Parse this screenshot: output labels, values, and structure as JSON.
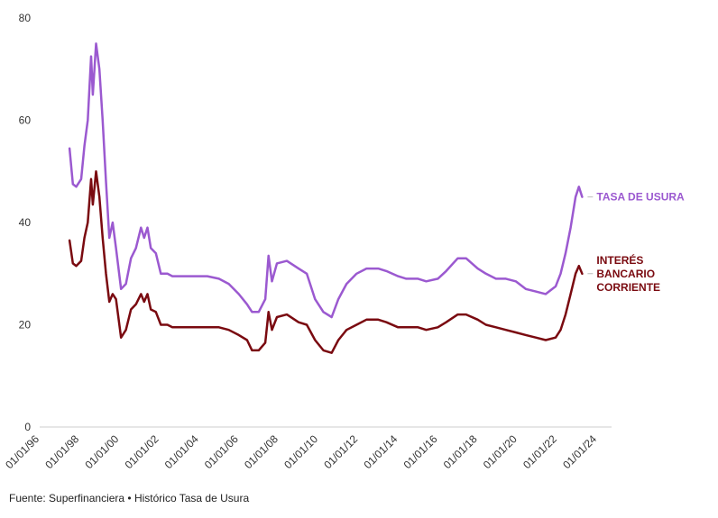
{
  "chart_data": {
    "type": "line",
    "ylim": [
      0,
      80
    ],
    "y_ticks": [
      0,
      20,
      40,
      60,
      80
    ],
    "x_range": [
      "1996-01-01",
      "2024-01-01"
    ],
    "x_ticks": [
      "01/01/96",
      "01/01/98",
      "01/01/00",
      "01/01/02",
      "01/01/04",
      "01/01/06",
      "01/01/08",
      "01/01/10",
      "01/01/12",
      "01/01/14",
      "01/01/16",
      "01/01/18",
      "01/01/20",
      "01/01/22",
      "01/01/24"
    ],
    "grid": false,
    "series": [
      {
        "name": "TASA DE USURA",
        "color": "#9b59d0",
        "points": [
          [
            "1997-07-01",
            54.5
          ],
          [
            "1997-09-01",
            47.5
          ],
          [
            "1997-11-01",
            47
          ],
          [
            "1998-02-01",
            48.5
          ],
          [
            "1998-04-01",
            55
          ],
          [
            "1998-06-01",
            60
          ],
          [
            "1998-08-01",
            72.5
          ],
          [
            "1998-09-01",
            65
          ],
          [
            "1998-11-01",
            75
          ],
          [
            "1999-01-01",
            70
          ],
          [
            "1999-03-01",
            60
          ],
          [
            "1999-05-01",
            48
          ],
          [
            "1999-07-01",
            37
          ],
          [
            "1999-09-01",
            40
          ],
          [
            "1999-11-01",
            35
          ],
          [
            "2000-02-01",
            27
          ],
          [
            "2000-05-01",
            28
          ],
          [
            "2000-08-01",
            33
          ],
          [
            "2000-11-01",
            35
          ],
          [
            "2001-02-01",
            39
          ],
          [
            "2001-04-01",
            37
          ],
          [
            "2001-06-01",
            39
          ],
          [
            "2001-08-01",
            35
          ],
          [
            "2001-11-01",
            34
          ],
          [
            "2002-02-01",
            30
          ],
          [
            "2002-06-01",
            30
          ],
          [
            "2002-09-01",
            29.5
          ],
          [
            "2003-01-01",
            29.5
          ],
          [
            "2003-06-01",
            29.5
          ],
          [
            "2003-12-01",
            29.5
          ],
          [
            "2004-06-01",
            29.5
          ],
          [
            "2005-01-01",
            29
          ],
          [
            "2005-07-01",
            28
          ],
          [
            "2006-01-01",
            26
          ],
          [
            "2006-06-01",
            24
          ],
          [
            "2006-09-01",
            22.5
          ],
          [
            "2007-01-01",
            22.5
          ],
          [
            "2007-05-01",
            25
          ],
          [
            "2007-07-01",
            33.5
          ],
          [
            "2007-09-01",
            28.5
          ],
          [
            "2007-12-01",
            32
          ],
          [
            "2008-06-01",
            32.5
          ],
          [
            "2009-01-01",
            31
          ],
          [
            "2009-06-01",
            30
          ],
          [
            "2009-11-01",
            25
          ],
          [
            "2010-04-01",
            22.5
          ],
          [
            "2010-09-01",
            21.5
          ],
          [
            "2011-01-01",
            25
          ],
          [
            "2011-06-01",
            28
          ],
          [
            "2011-12-01",
            30
          ],
          [
            "2012-06-01",
            31
          ],
          [
            "2013-01-01",
            31
          ],
          [
            "2013-06-01",
            30.5
          ],
          [
            "2014-01-01",
            29.5
          ],
          [
            "2014-06-01",
            29
          ],
          [
            "2015-01-01",
            29
          ],
          [
            "2015-06-01",
            28.5
          ],
          [
            "2016-01-01",
            29
          ],
          [
            "2016-06-01",
            30.5
          ],
          [
            "2017-01-01",
            33
          ],
          [
            "2017-06-01",
            33
          ],
          [
            "2018-01-01",
            31
          ],
          [
            "2018-06-01",
            30
          ],
          [
            "2018-12-01",
            29
          ],
          [
            "2019-06-01",
            29
          ],
          [
            "2019-12-01",
            28.5
          ],
          [
            "2020-06-01",
            27
          ],
          [
            "2020-12-01",
            26.5
          ],
          [
            "2021-06-01",
            26
          ],
          [
            "2021-12-01",
            27.5
          ],
          [
            "2022-03-01",
            30
          ],
          [
            "2022-06-01",
            34
          ],
          [
            "2022-09-01",
            39
          ],
          [
            "2022-12-01",
            45
          ],
          [
            "2023-02-01",
            47
          ],
          [
            "2023-04-01",
            45
          ]
        ]
      },
      {
        "name": "INTERÉS BANCARIO CORRIENTE",
        "color": "#7a0a10",
        "points": [
          [
            "1997-07-01",
            36.5
          ],
          [
            "1997-09-01",
            32
          ],
          [
            "1997-11-01",
            31.5
          ],
          [
            "1998-02-01",
            32.5
          ],
          [
            "1998-04-01",
            37
          ],
          [
            "1998-06-01",
            40
          ],
          [
            "1998-08-01",
            48.5
          ],
          [
            "1998-09-01",
            43.5
          ],
          [
            "1998-11-01",
            50
          ],
          [
            "1999-01-01",
            45
          ],
          [
            "1999-03-01",
            37
          ],
          [
            "1999-05-01",
            30
          ],
          [
            "1999-07-01",
            24.5
          ],
          [
            "1999-09-01",
            26
          ],
          [
            "1999-11-01",
            25
          ],
          [
            "2000-02-01",
            17.5
          ],
          [
            "2000-05-01",
            19
          ],
          [
            "2000-08-01",
            23
          ],
          [
            "2000-11-01",
            24
          ],
          [
            "2001-02-01",
            26
          ],
          [
            "2001-04-01",
            24.5
          ],
          [
            "2001-06-01",
            26
          ],
          [
            "2001-08-01",
            23
          ],
          [
            "2001-11-01",
            22.5
          ],
          [
            "2002-02-01",
            20
          ],
          [
            "2002-06-01",
            20
          ],
          [
            "2002-09-01",
            19.5
          ],
          [
            "2003-01-01",
            19.5
          ],
          [
            "2003-06-01",
            19.5
          ],
          [
            "2003-12-01",
            19.5
          ],
          [
            "2004-06-01",
            19.5
          ],
          [
            "2005-01-01",
            19.5
          ],
          [
            "2005-07-01",
            19
          ],
          [
            "2006-01-01",
            18
          ],
          [
            "2006-06-01",
            17
          ],
          [
            "2006-09-01",
            15
          ],
          [
            "2007-01-01",
            15
          ],
          [
            "2007-05-01",
            16.5
          ],
          [
            "2007-07-01",
            22.5
          ],
          [
            "2007-09-01",
            19
          ],
          [
            "2007-12-01",
            21.5
          ],
          [
            "2008-06-01",
            22
          ],
          [
            "2009-01-01",
            20.5
          ],
          [
            "2009-06-01",
            20
          ],
          [
            "2009-11-01",
            17
          ],
          [
            "2010-04-01",
            15
          ],
          [
            "2010-09-01",
            14.5
          ],
          [
            "2011-01-01",
            17
          ],
          [
            "2011-06-01",
            19
          ],
          [
            "2011-12-01",
            20
          ],
          [
            "2012-06-01",
            21
          ],
          [
            "2013-01-01",
            21
          ],
          [
            "2013-06-01",
            20.5
          ],
          [
            "2014-01-01",
            19.5
          ],
          [
            "2014-06-01",
            19.5
          ],
          [
            "2015-01-01",
            19.5
          ],
          [
            "2015-06-01",
            19
          ],
          [
            "2016-01-01",
            19.5
          ],
          [
            "2016-06-01",
            20.5
          ],
          [
            "2017-01-01",
            22
          ],
          [
            "2017-06-01",
            22
          ],
          [
            "2018-01-01",
            21
          ],
          [
            "2018-06-01",
            20
          ],
          [
            "2018-12-01",
            19.5
          ],
          [
            "2019-06-01",
            19
          ],
          [
            "2019-12-01",
            18.5
          ],
          [
            "2020-06-01",
            18
          ],
          [
            "2020-12-01",
            17.5
          ],
          [
            "2021-06-01",
            17
          ],
          [
            "2021-12-01",
            17.5
          ],
          [
            "2022-03-01",
            19
          ],
          [
            "2022-06-01",
            22
          ],
          [
            "2022-09-01",
            26
          ],
          [
            "2022-12-01",
            30
          ],
          [
            "2023-02-01",
            31.5
          ],
          [
            "2023-04-01",
            30
          ]
        ]
      }
    ],
    "labels": [
      {
        "series": 0,
        "lines": [
          "TASA DE USURA"
        ]
      },
      {
        "series": 1,
        "lines": [
          "INTERÉS",
          "BANCARIO",
          "CORRIENTE"
        ]
      }
    ]
  },
  "source": "Fuente: Superfinanciera • Histórico Tasa de Usura"
}
